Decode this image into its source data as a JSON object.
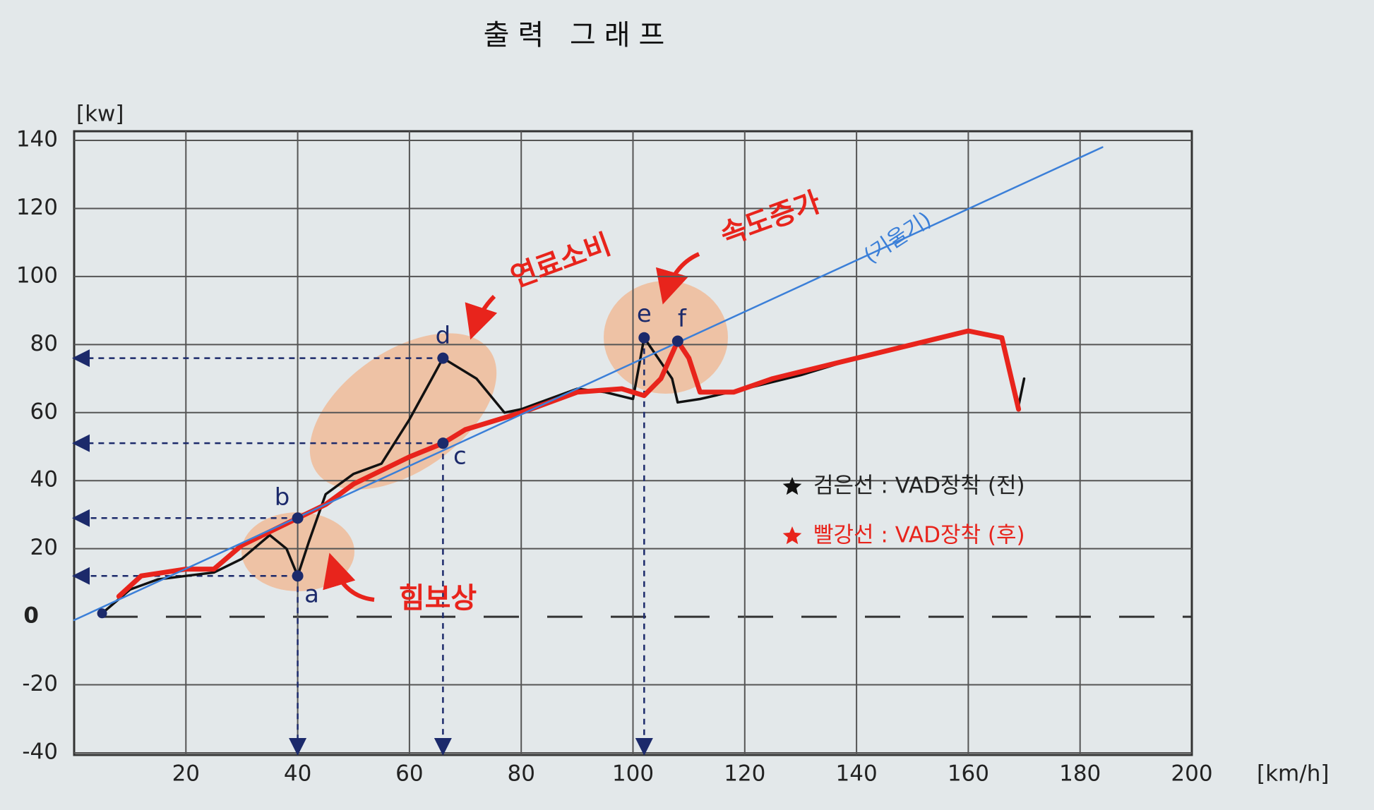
{
  "chart_data": {
    "type": "line",
    "title": "출력 그래프",
    "y_label": "[kw]",
    "x_label": "[km/h]",
    "xlim": [
      0,
      200
    ],
    "ylim": [
      -40,
      140
    ],
    "xticks": [
      20,
      40,
      60,
      80,
      100,
      120,
      140,
      160,
      180,
      200
    ],
    "yticks": [
      -40,
      -20,
      0,
      20,
      40,
      60,
      80,
      100,
      120,
      140
    ],
    "grid": true,
    "series": [
      {
        "name": "검은선 : VAD장착 (전)",
        "color": "#111111",
        "x": [
          5,
          10,
          15,
          20,
          25,
          30,
          35,
          38,
          40,
          42,
          45,
          50,
          55,
          60,
          64,
          66,
          72,
          77,
          80,
          90,
          95,
          100,
          102,
          107,
          108,
          112,
          120,
          130,
          140,
          150,
          160,
          166,
          169,
          170
        ],
        "values": [
          1,
          8,
          11,
          12,
          13,
          17,
          24,
          20,
          12,
          22,
          36,
          42,
          45,
          58,
          70,
          76,
          70,
          60,
          61,
          67,
          66,
          64,
          82,
          70,
          63,
          64,
          67,
          71,
          76,
          80,
          84,
          82,
          62,
          70
        ]
      },
      {
        "name": "빨강선 : VAD장착 (후)",
        "color": "#e8241c",
        "x": [
          8,
          12,
          20,
          25,
          30,
          35,
          40,
          45,
          50,
          60,
          66,
          70,
          80,
          90,
          98,
          102,
          105,
          108,
          110,
          112,
          118,
          125,
          130,
          140,
          150,
          160,
          166,
          169
        ],
        "values": [
          6,
          12,
          14,
          14,
          21,
          25,
          29,
          33,
          39,
          47,
          51,
          55,
          60,
          66,
          67,
          65,
          70,
          81,
          76,
          66,
          66,
          70,
          72,
          76,
          80,
          84,
          82,
          61
        ]
      },
      {
        "name": "(기울기)",
        "color": "#3b7fd8",
        "x": [
          0,
          184
        ],
        "values": [
          -1,
          138
        ]
      }
    ],
    "points": [
      {
        "label": "a",
        "x": 40,
        "y": 12
      },
      {
        "label": "b",
        "x": 40,
        "y": 29
      },
      {
        "label": "c",
        "x": 66,
        "y": 51
      },
      {
        "label": "d",
        "x": 66,
        "y": 76
      },
      {
        "label": "e",
        "x": 102,
        "y": 82
      },
      {
        "label": "f",
        "x": 108,
        "y": 81
      }
    ],
    "annotations": [
      "연료소비",
      "속도증가",
      "힘보상"
    ]
  }
}
